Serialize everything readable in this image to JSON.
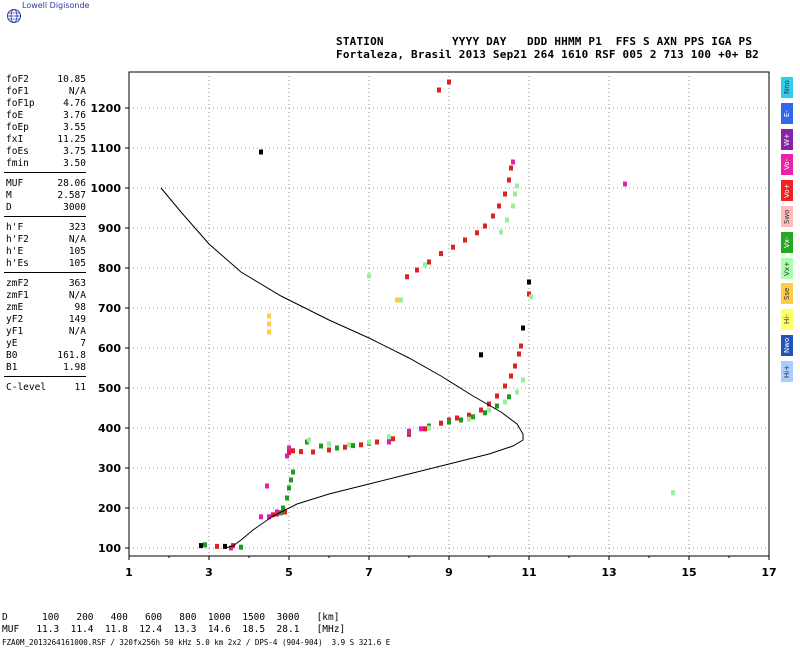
{
  "logo": {
    "text": "Lowell Digisonde",
    "icon": "globe-icon"
  },
  "header": {
    "line1": "STATION          YYYY DAY   DDD HHMM P1  FFS S AXN PPS IGA PS",
    "line2": "Fortaleza, Brasil 2013 Sep21 264 1610 RSF 005 2 713 100 +0+ B2"
  },
  "parameters": [
    {
      "name": "foF2",
      "value": "10.85"
    },
    {
      "name": "foF1",
      "value": "N/A"
    },
    {
      "name": "foF1p",
      "value": "4.76"
    },
    {
      "name": "foE",
      "value": "3.76"
    },
    {
      "name": "foEp",
      "value": "3.55"
    },
    {
      "name": "fxI",
      "value": "11.25"
    },
    {
      "name": "foEs",
      "value": "3.75"
    },
    {
      "name": "fmin",
      "value": "3.50"
    },
    {
      "name": "MUF",
      "value": "28.06"
    },
    {
      "name": "M",
      "value": "2.587"
    },
    {
      "name": "D",
      "value": "3000"
    },
    {
      "name": "h'F",
      "value": "323"
    },
    {
      "name": "h'F2",
      "value": "N/A"
    },
    {
      "name": "h'E",
      "value": "105"
    },
    {
      "name": "h'Es",
      "value": "105"
    },
    {
      "name": "zmF2",
      "value": "363"
    },
    {
      "name": "zmF1",
      "value": "N/A"
    },
    {
      "name": "zmE",
      "value": "98"
    },
    {
      "name": "yF2",
      "value": "149"
    },
    {
      "name": "yF1",
      "value": "N/A"
    },
    {
      "name": "yE",
      "value": "7"
    },
    {
      "name": "B0",
      "value": "161.8"
    },
    {
      "name": "B1",
      "value": "1.98"
    },
    {
      "name": "C-level",
      "value": "11"
    }
  ],
  "legend": [
    {
      "label": "Nno",
      "color": "#33ccee"
    },
    {
      "label": "E-",
      "color": "#3366ee"
    },
    {
      "label": "W+",
      "color": "#8822aa"
    },
    {
      "label": "Vo-",
      "color": "#ee22aa"
    },
    {
      "label": "Vo+",
      "color": "#ee2222"
    },
    {
      "label": "Swo",
      "color": "#ffbbbb"
    },
    {
      "label": "Vx-",
      "color": "#22aa22"
    },
    {
      "label": "Vx+",
      "color": "#aaffaa"
    },
    {
      "label": "Sse",
      "color": "#ffcc44"
    },
    {
      "label": "Hi-",
      "color": "#ffff66"
    },
    {
      "label": "Nwo",
      "color": "#2255bb"
    },
    {
      "label": "Hi+",
      "color": "#aaccff"
    }
  ],
  "footer": {
    "d_row": "D      100   200   400   600   800  1000  1500  3000   [km]",
    "muf_row": "MUF   11.3  11.4  11.8  12.4  13.3  14.6  18.5  28.1   [MHz]",
    "file_row": "FZA0M_2013264161000.RSF / 320fx256h 50 kHz 5.0 km 2x2 / DPS-4 (904-904)  3.9 S 321.6 E"
  },
  "chart_data": {
    "type": "scatter",
    "title": "",
    "xlabel": "",
    "ylabel": "",
    "xlim": [
      1,
      17
    ],
    "ylim": [
      80,
      1290
    ],
    "x_ticks": [
      1,
      3,
      5,
      7,
      9,
      11,
      13,
      15,
      17
    ],
    "y_ticks": [
      100,
      200,
      300,
      400,
      500,
      600,
      700,
      800,
      900,
      1000,
      1100,
      1200
    ],
    "grid": true,
    "colors": {
      "main_o": "#dd2222",
      "main_g": "#229922",
      "light_g": "#99ee99",
      "magenta": "#dd22aa",
      "profile": "#000000"
    },
    "series": [
      {
        "color": "#dd2222",
        "points": [
          [
            4.6,
            183
          ],
          [
            4.7,
            185
          ],
          [
            4.9,
            190
          ],
          [
            5.0,
            338
          ],
          [
            5.1,
            343
          ],
          [
            5.3,
            341
          ],
          [
            5.6,
            340
          ],
          [
            6.0,
            345
          ],
          [
            6.4,
            352
          ],
          [
            6.8,
            358
          ],
          [
            7.2,
            365
          ],
          [
            7.6,
            373
          ],
          [
            8.0,
            384
          ],
          [
            8.4,
            398
          ],
          [
            8.8,
            412
          ],
          [
            9.0,
            420
          ],
          [
            9.2,
            425
          ],
          [
            9.5,
            432
          ],
          [
            9.8,
            445
          ],
          [
            10.0,
            460
          ],
          [
            10.2,
            480
          ],
          [
            10.4,
            505
          ],
          [
            10.55,
            530
          ],
          [
            10.65,
            555
          ],
          [
            10.75,
            585
          ],
          [
            10.8,
            605
          ],
          [
            7.95,
            778
          ],
          [
            8.2,
            795
          ],
          [
            8.5,
            815
          ],
          [
            8.8,
            836
          ],
          [
            9.1,
            852
          ],
          [
            9.4,
            870
          ],
          [
            9.7,
            888
          ],
          [
            9.9,
            905
          ],
          [
            10.1,
            930
          ],
          [
            10.25,
            955
          ],
          [
            10.4,
            985
          ],
          [
            10.5,
            1020
          ],
          [
            10.55,
            1050
          ],
          [
            3.2,
            104
          ],
          [
            3.6,
            106
          ],
          [
            11.0,
            735
          ],
          [
            9.0,
            1265
          ],
          [
            8.75,
            1245
          ]
        ]
      },
      {
        "color": "#229922",
        "points": [
          [
            4.8,
            188
          ],
          [
            4.85,
            200
          ],
          [
            4.95,
            225
          ],
          [
            5.0,
            250
          ],
          [
            5.05,
            270
          ],
          [
            5.1,
            290
          ],
          [
            5.45,
            365
          ],
          [
            5.8,
            355
          ],
          [
            6.2,
            350
          ],
          [
            6.6,
            356
          ],
          [
            7.0,
            362
          ],
          [
            7.5,
            370
          ],
          [
            8.0,
            390
          ],
          [
            8.5,
            405
          ],
          [
            9.0,
            415
          ],
          [
            9.3,
            420
          ],
          [
            9.6,
            428
          ],
          [
            9.9,
            438
          ],
          [
            10.2,
            455
          ],
          [
            10.5,
            478
          ],
          [
            3.8,
            102
          ],
          [
            2.9,
            108
          ]
        ]
      },
      {
        "color": "#99ee99",
        "points": [
          [
            5.5,
            370
          ],
          [
            6.0,
            360
          ],
          [
            6.5,
            358
          ],
          [
            7.0,
            365
          ],
          [
            7.5,
            378
          ],
          [
            8.5,
            400
          ],
          [
            9.5,
            422
          ],
          [
            10.0,
            445
          ],
          [
            10.4,
            465
          ],
          [
            10.7,
            490
          ],
          [
            10.85,
            520
          ],
          [
            10.3,
            890
          ],
          [
            10.45,
            920
          ],
          [
            10.6,
            955
          ],
          [
            10.65,
            985
          ],
          [
            10.7,
            1005
          ],
          [
            8.4,
            808
          ],
          [
            7.0,
            780
          ],
          [
            7.8,
            720
          ],
          [
            14.6,
            238
          ],
          [
            11.05,
            728
          ]
        ]
      },
      {
        "color": "#dd22aa",
        "points": [
          [
            4.3,
            178
          ],
          [
            4.5,
            178
          ],
          [
            4.7,
            190
          ],
          [
            4.95,
            330
          ],
          [
            5.0,
            350
          ],
          [
            7.5,
            365
          ],
          [
            8.0,
            392
          ],
          [
            8.3,
            398
          ],
          [
            3.55,
            100
          ],
          [
            4.45,
            255
          ],
          [
            13.4,
            1010
          ],
          [
            10.6,
            1065
          ]
        ]
      },
      {
        "color": "#ffcc44",
        "points": [
          [
            4.5,
            640
          ],
          [
            4.5,
            660
          ],
          [
            4.5,
            680
          ],
          [
            7.7,
            720
          ]
        ]
      },
      {
        "color": "#000000",
        "points": [
          [
            4.3,
            1090
          ],
          [
            9.8,
            583
          ],
          [
            2.8,
            106
          ],
          [
            3.4,
            104
          ],
          [
            10.85,
            650
          ],
          [
            11.0,
            765
          ]
        ]
      }
    ],
    "profile_curve": [
      [
        1.8,
        1000
      ],
      [
        2.3,
        940
      ],
      [
        3.0,
        860
      ],
      [
        3.8,
        790
      ],
      [
        4.8,
        730
      ],
      [
        6.0,
        670
      ],
      [
        7.0,
        625
      ],
      [
        8.0,
        575
      ],
      [
        8.8,
        530
      ],
      [
        9.6,
        480
      ],
      [
        10.3,
        440
      ],
      [
        10.7,
        410
      ],
      [
        10.85,
        385
      ],
      [
        10.85,
        370
      ],
      [
        10.6,
        355
      ],
      [
        10.0,
        335
      ],
      [
        9.0,
        310
      ],
      [
        8.0,
        285
      ],
      [
        7.0,
        260
      ],
      [
        6.0,
        235
      ],
      [
        5.2,
        210
      ],
      [
        4.6,
        180
      ],
      [
        4.1,
        145
      ],
      [
        3.8,
        120
      ],
      [
        3.6,
        105
      ],
      [
        3.4,
        100
      ]
    ]
  }
}
